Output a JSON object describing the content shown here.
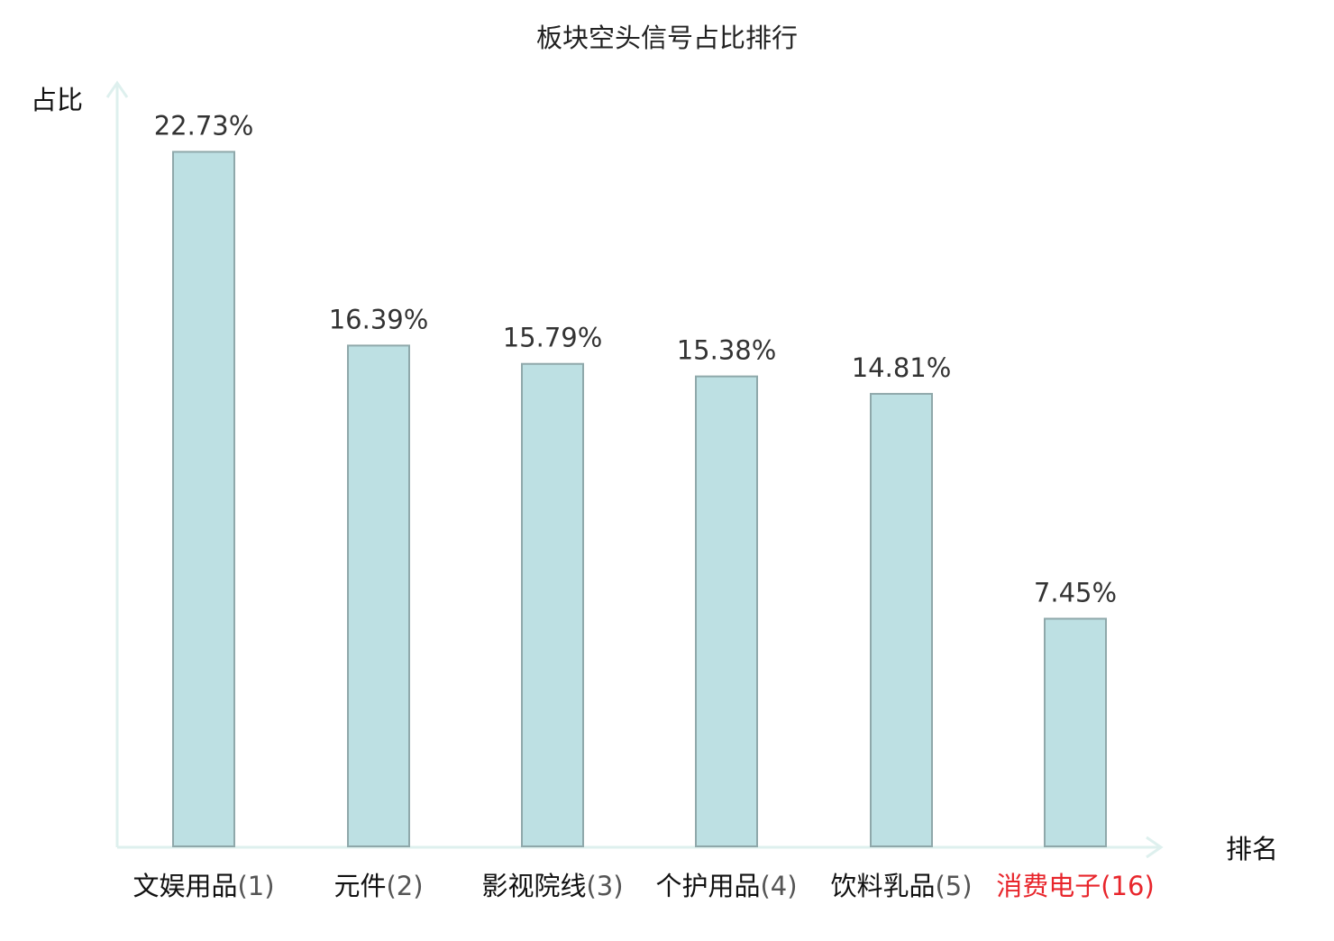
{
  "chart_data": {
    "type": "bar",
    "title": "板块空头信号占比排行",
    "ylabel": "占比",
    "xlabel": "排名",
    "ylim": [
      0,
      24
    ],
    "grid": false,
    "legend": "none",
    "categories": [
      {
        "name": "文娱用品",
        "rank": "(1)",
        "highlight": false
      },
      {
        "name": "元件",
        "rank": "(2)",
        "highlight": false
      },
      {
        "name": "影视院线",
        "rank": "(3)",
        "highlight": false
      },
      {
        "name": "个护用品",
        "rank": "(4)",
        "highlight": false
      },
      {
        "name": "饮料乳品",
        "rank": "(5)",
        "highlight": false
      },
      {
        "name": "消费电子",
        "rank": "(16)",
        "highlight": true
      }
    ],
    "values": [
      22.73,
      16.39,
      15.79,
      15.38,
      14.81,
      7.45
    ],
    "value_labels": [
      "22.73%",
      "16.39%",
      "15.79%",
      "15.38%",
      "14.81%",
      "7.45%"
    ]
  },
  "colors": {
    "bar_fill": "#bde0e3",
    "bar_stroke": "#8fa8aa",
    "axis": "#def0ee",
    "text": "#333333",
    "label_text": "#111111",
    "rank_text": "#555555",
    "highlight": "#e8262c"
  }
}
